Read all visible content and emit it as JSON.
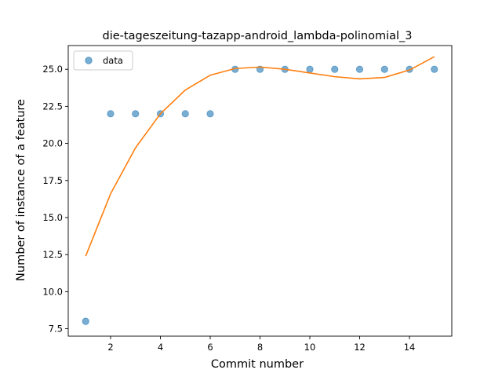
{
  "chart_data": {
    "type": "scatter",
    "title": "die-tageszeitung-tazapp-android_lambda-polinomial_3",
    "xlabel": "Commit number",
    "ylabel": "Number of instance of a feature",
    "xlim": [
      0.3,
      15.7
    ],
    "ylim": [
      7.0,
      26.6
    ],
    "x_ticks": [
      2,
      4,
      6,
      8,
      10,
      12,
      14
    ],
    "y_ticks": [
      7.5,
      10.0,
      12.5,
      15.0,
      17.5,
      20.0,
      22.5,
      25.0
    ],
    "x_tick_labels": [
      "2",
      "4",
      "6",
      "8",
      "10",
      "12",
      "14"
    ],
    "y_tick_labels": [
      "7.5",
      "10.0",
      "12.5",
      "15.0",
      "17.5",
      "20.0",
      "22.5",
      "25.0"
    ],
    "grid": false,
    "legend": {
      "position": "upper-left",
      "entries": [
        "data"
      ]
    },
    "series": [
      {
        "name": "data",
        "kind": "scatter",
        "color": "#1f77b4",
        "x": [
          1,
          2,
          3,
          4,
          5,
          6,
          7,
          8,
          9,
          10,
          11,
          12,
          13,
          14,
          15
        ],
        "y": [
          8,
          22,
          22,
          22,
          22,
          22,
          25,
          25,
          25,
          25,
          25,
          25,
          25,
          25,
          25
        ]
      },
      {
        "kind": "line",
        "color": "#ff7f0e",
        "x": [
          1,
          2,
          3,
          4,
          5,
          6,
          7,
          8,
          9,
          10,
          11,
          12,
          13,
          14,
          15
        ],
        "y": [
          12.4,
          16.6,
          19.7,
          22.0,
          23.6,
          24.6,
          25.05,
          25.15,
          25.0,
          24.75,
          24.5,
          24.35,
          24.45,
          24.95,
          25.85
        ]
      }
    ]
  }
}
